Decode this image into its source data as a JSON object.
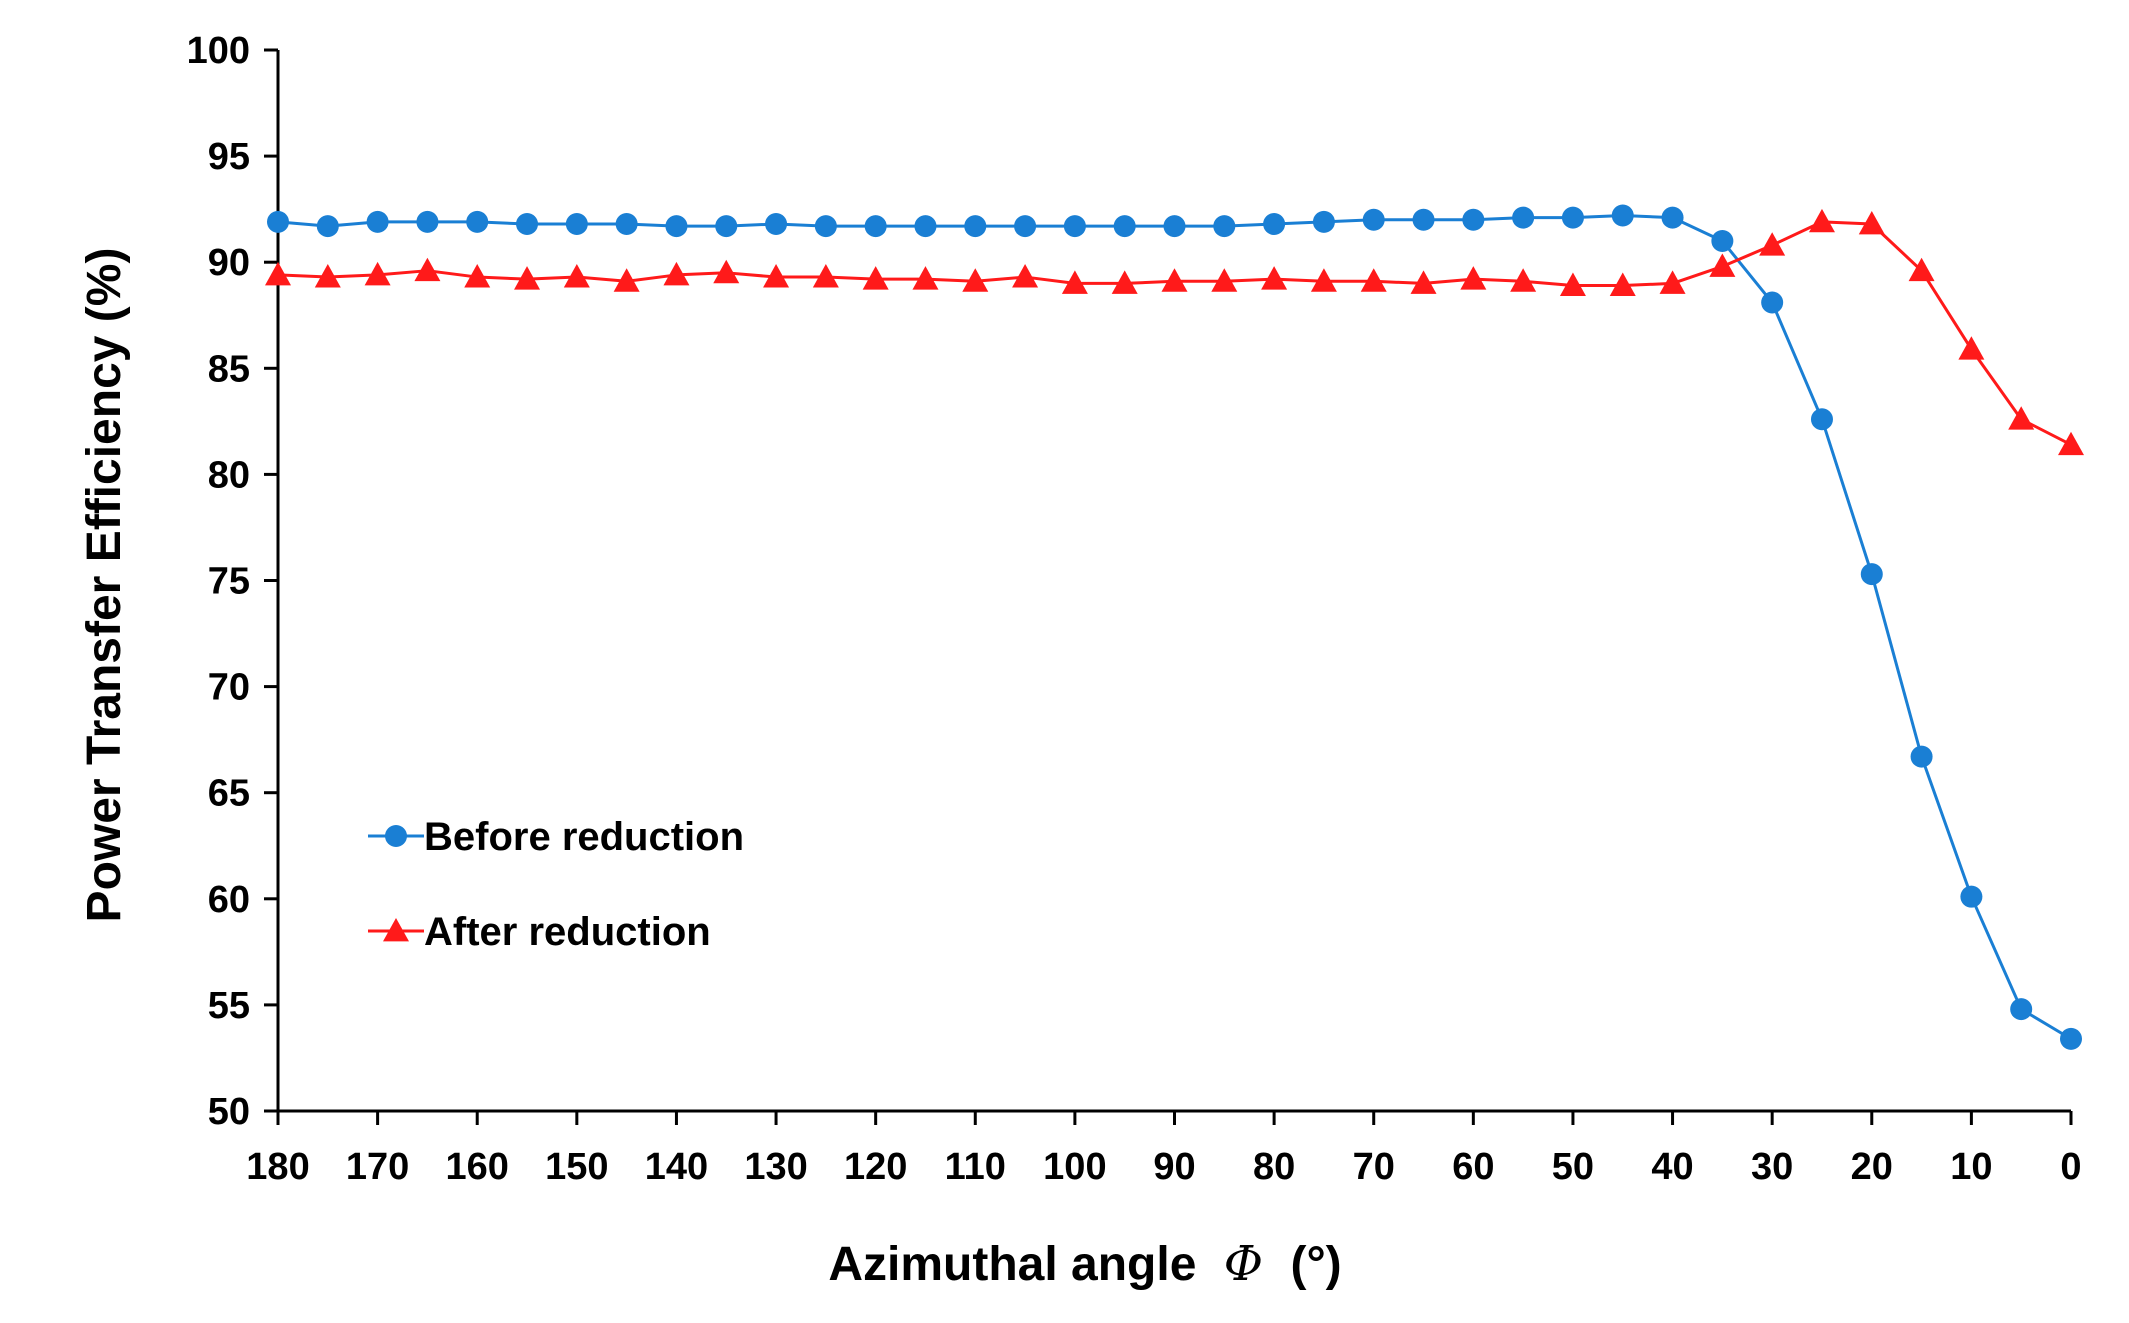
{
  "chart_data": {
    "type": "line",
    "title": "",
    "xlabel": "Azimuthal angle",
    "xlabel_symbol": "Φ",
    "xlabel_unit": "(°)",
    "ylabel": "Power Transfer Efficiency (%)",
    "xlim": [
      180,
      0
    ],
    "x_reversed": true,
    "ylim": [
      50,
      100
    ],
    "grid": false,
    "legend_position": "left-middle",
    "x_ticks": [
      180,
      170,
      160,
      150,
      140,
      130,
      120,
      110,
      100,
      90,
      80,
      70,
      60,
      50,
      40,
      30,
      20,
      10,
      0
    ],
    "y_ticks": [
      50,
      55,
      60,
      65,
      70,
      75,
      80,
      85,
      90,
      95,
      100
    ],
    "x": [
      180,
      175,
      170,
      165,
      160,
      155,
      150,
      145,
      140,
      135,
      130,
      125,
      120,
      115,
      110,
      105,
      100,
      95,
      90,
      85,
      80,
      75,
      70,
      65,
      60,
      55,
      50,
      45,
      40,
      35,
      30,
      25,
      20,
      15,
      10,
      5,
      0
    ],
    "series": [
      {
        "name": "Before reduction",
        "color": "#1a7fd4",
        "marker": "circle",
        "values": [
          91.9,
          91.7,
          91.9,
          91.9,
          91.9,
          91.8,
          91.8,
          91.8,
          91.7,
          91.7,
          91.8,
          91.7,
          91.7,
          91.7,
          91.7,
          91.7,
          91.7,
          91.7,
          91.7,
          91.7,
          91.8,
          91.9,
          92.0,
          92.0,
          92.0,
          92.1,
          92.1,
          92.2,
          92.1,
          91.0,
          88.1,
          82.6,
          75.3,
          66.7,
          60.1,
          54.8,
          53.4
        ]
      },
      {
        "name": "After reduction",
        "color": "#ff1a1a",
        "marker": "triangle",
        "values": [
          89.4,
          89.3,
          89.4,
          89.6,
          89.3,
          89.2,
          89.3,
          89.1,
          89.4,
          89.5,
          89.3,
          89.3,
          89.2,
          89.2,
          89.1,
          89.3,
          89.0,
          89.0,
          89.1,
          89.1,
          89.2,
          89.1,
          89.1,
          89.0,
          89.2,
          89.1,
          88.9,
          88.9,
          89.0,
          89.8,
          90.8,
          91.9,
          91.8,
          89.6,
          85.9,
          82.6,
          81.4
        ]
      }
    ]
  }
}
